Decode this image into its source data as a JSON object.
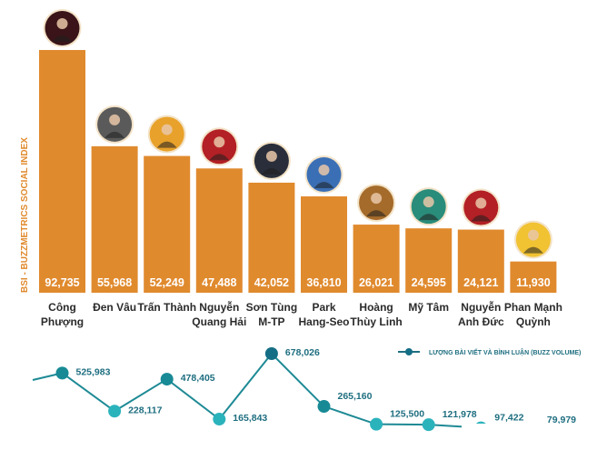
{
  "chart_data": [
    {
      "type": "bar",
      "title": "",
      "ylabel": "BSI - BUZZMETRICS SOCIAL INDEX",
      "xlabel": "",
      "ylim": [
        0,
        92735
      ],
      "categories": [
        [
          "Công",
          "Phượng"
        ],
        [
          "Đen Vâu"
        ],
        [
          "Trấn Thành"
        ],
        [
          "Nguyễn",
          "Quang Hải"
        ],
        [
          "Sơn Tùng",
          "M-TP"
        ],
        [
          "Park",
          "Hang-Seo"
        ],
        [
          "Hoàng",
          "Thùy Linh"
        ],
        [
          "Mỹ Tâm"
        ],
        [
          "Nguyễn",
          "Anh Đức"
        ],
        [
          "Phan Mạnh",
          "Quỳnh"
        ]
      ],
      "values": [
        92735,
        55968,
        52249,
        47488,
        42052,
        36810,
        26021,
        24595,
        24121,
        11930
      ],
      "value_labels": [
        "92,735",
        "55,968",
        "52,249",
        "47,488",
        "42,052",
        "36,810",
        "26,021",
        "24,595",
        "24,121",
        "11,930"
      ],
      "avatar_icons": [
        "portrait-icon",
        "portrait-icon",
        "portrait-icon",
        "portrait-icon",
        "portrait-icon",
        "portrait-icon",
        "portrait-icon",
        "portrait-icon",
        "portrait-icon",
        "portrait-icon"
      ],
      "avatar_colors": [
        "#3a1418",
        "#5a5a5a",
        "#E8A12A",
        "#B32025",
        "#2A2E3A",
        "#3B6FB5",
        "#A56B2A",
        "#2A8C7A",
        "#B32025",
        "#F1C232"
      ],
      "bar_color": "#E08A2E",
      "grid": false
    },
    {
      "type": "line",
      "series": [
        {
          "name": "LƯỢNG BÀI VIẾT VÀ BÌNH LUẬN (BUZZ VOLUME)",
          "values": [
            525983,
            228117,
            478405,
            165843,
            678026,
            265160,
            125500,
            121978,
            97422,
            79979
          ],
          "value_labels": [
            "525,983",
            "228,117",
            "478,405",
            "165,843",
            "678,026",
            "265,160",
            "125,500",
            "121,978",
            "97,422",
            "79,979"
          ]
        }
      ],
      "legend": "top-right",
      "line_color": "#1E8A95",
      "dot_colors": [
        "#178A95",
        "#2BB3BC",
        "#178A95",
        "#2BB3BC",
        "#146E85",
        "#178A95",
        "#2BB3BC",
        "#2BB3BC",
        "#2BB3BC",
        "#2BB3BC"
      ]
    }
  ]
}
